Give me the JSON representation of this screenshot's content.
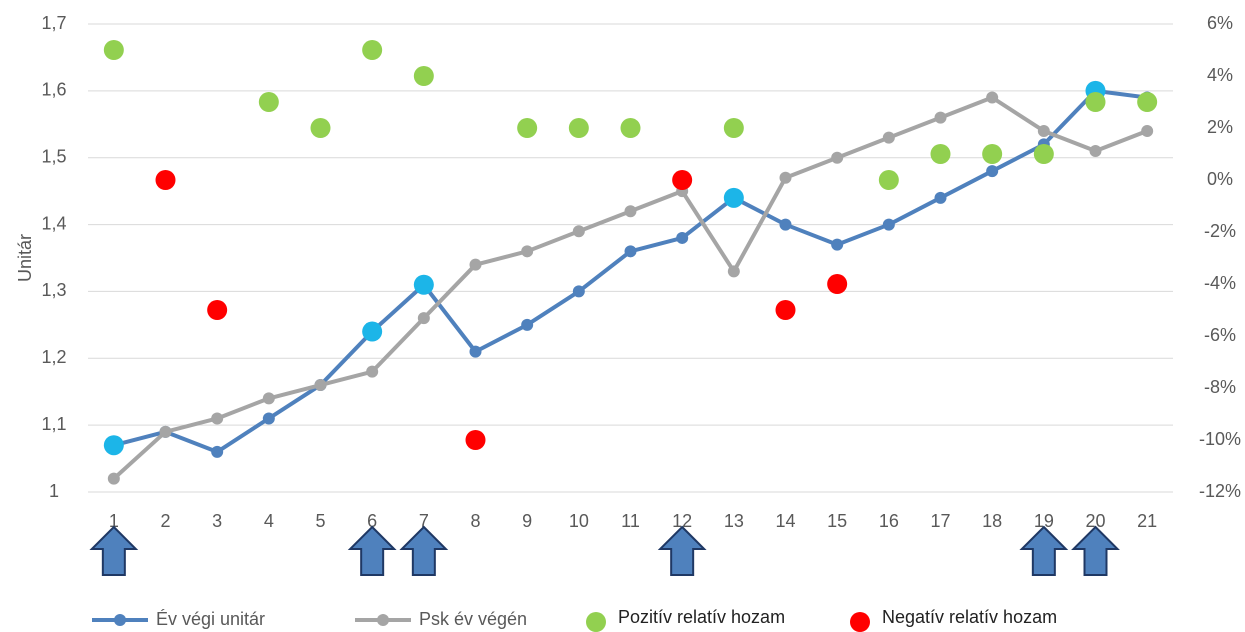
{
  "chart_data": {
    "type": "line",
    "y_label": "Unitár",
    "x": [
      1,
      2,
      3,
      4,
      5,
      6,
      7,
      8,
      9,
      10,
      11,
      12,
      13,
      14,
      15,
      16,
      17,
      18,
      19,
      20,
      21
    ],
    "xlim": [
      0.5,
      21.5
    ],
    "ylim": [
      1,
      1.7
    ],
    "yticks": [
      1,
      {
        "value": 1.1,
        "label": "1,1"
      },
      {
        "value": 1.2,
        "label": "1,2"
      },
      {
        "value": 1.3,
        "label": "1,3"
      },
      {
        "value": 1.4,
        "label": "1,4"
      },
      {
        "value": 1.5,
        "label": "1,5"
      },
      {
        "value": 1.6,
        "label": "1,6"
      },
      {
        "value": 1.7,
        "label": "1,7"
      }
    ],
    "y2lim": [
      -12,
      6
    ],
    "y2ticks": [
      {
        "value": -12,
        "label": "-12%"
      },
      {
        "value": -10,
        "label": "-10%"
      },
      {
        "value": -8,
        "label": "-8%"
      },
      {
        "value": -6,
        "label": "-6%"
      },
      {
        "value": -4,
        "label": "-4%"
      },
      {
        "value": -2,
        "label": "-2%"
      },
      {
        "value": 0,
        "label": "0%"
      },
      {
        "value": 2,
        "label": "2%"
      },
      {
        "value": 4,
        "label": "4%"
      },
      {
        "value": 6,
        "label": "6%"
      }
    ],
    "grid": true,
    "highlight_color": "#1cb5e8",
    "highlighted_at": [
      1,
      6,
      7,
      13,
      20
    ],
    "arrow_color": "#4f81bd",
    "arrows_at": [
      1,
      6,
      7,
      12,
      19,
      20
    ],
    "series": [
      {
        "name": "Év végi unitár",
        "kind": "line",
        "color": "#4f81bd",
        "values": [
          1.07,
          1.09,
          1.06,
          1.11,
          1.16,
          1.24,
          1.31,
          1.21,
          1.25,
          1.3,
          1.36,
          1.38,
          1.44,
          1.4,
          1.37,
          1.4,
          1.44,
          1.48,
          1.52,
          1.6,
          1.59
        ]
      },
      {
        "name": "Psk év végén",
        "kind": "line",
        "color": "#a5a5a5",
        "values": [
          1.02,
          1.09,
          1.11,
          1.14,
          1.16,
          1.18,
          1.26,
          1.34,
          1.36,
          1.39,
          1.42,
          1.45,
          1.33,
          1.47,
          1.5,
          1.53,
          1.56,
          1.59,
          1.54,
          1.51,
          1.54
        ]
      },
      {
        "name": "Pozitív relatív hozam",
        "kind": "scatter",
        "axis": "y2",
        "color": "#92d050",
        "x": [
          1,
          4,
          5,
          6,
          7,
          9,
          10,
          11,
          13,
          16,
          17,
          18,
          19,
          20,
          21
        ],
        "values": [
          5,
          3,
          2,
          5,
          4,
          2,
          2,
          2,
          2,
          0,
          1,
          1,
          1,
          3,
          3
        ]
      },
      {
        "name": "Negatív relatív hozam",
        "kind": "scatter",
        "axis": "y2",
        "color": "#ff0000",
        "x": [
          2,
          3,
          8,
          12,
          14,
          15
        ],
        "values": [
          0,
          -5,
          -10,
          0,
          -5,
          -4
        ]
      }
    ]
  }
}
